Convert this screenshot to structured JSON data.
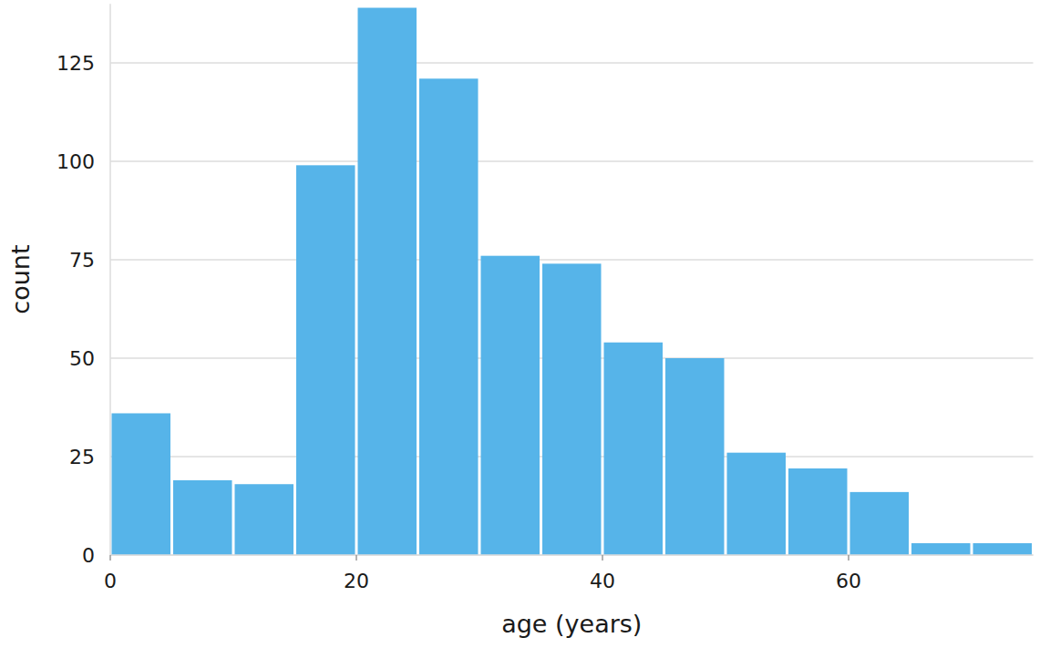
{
  "chart_data": {
    "type": "histogram",
    "xlabel": "age (years)",
    "ylabel": "count",
    "bins": [
      0,
      5,
      10,
      15,
      20,
      25,
      30,
      35,
      40,
      45,
      50,
      55,
      60,
      65,
      70,
      75
    ],
    "values": [
      36,
      19,
      18,
      99,
      139,
      121,
      76,
      74,
      54,
      50,
      26,
      22,
      16,
      3,
      3
    ],
    "color": "#56b4e9",
    "xlim": [
      0,
      75
    ],
    "ylim": [
      0,
      140
    ],
    "xticks": [
      0,
      20,
      40,
      60
    ],
    "yticks": [
      0,
      25,
      50,
      75,
      100,
      125
    ],
    "grid": true
  }
}
